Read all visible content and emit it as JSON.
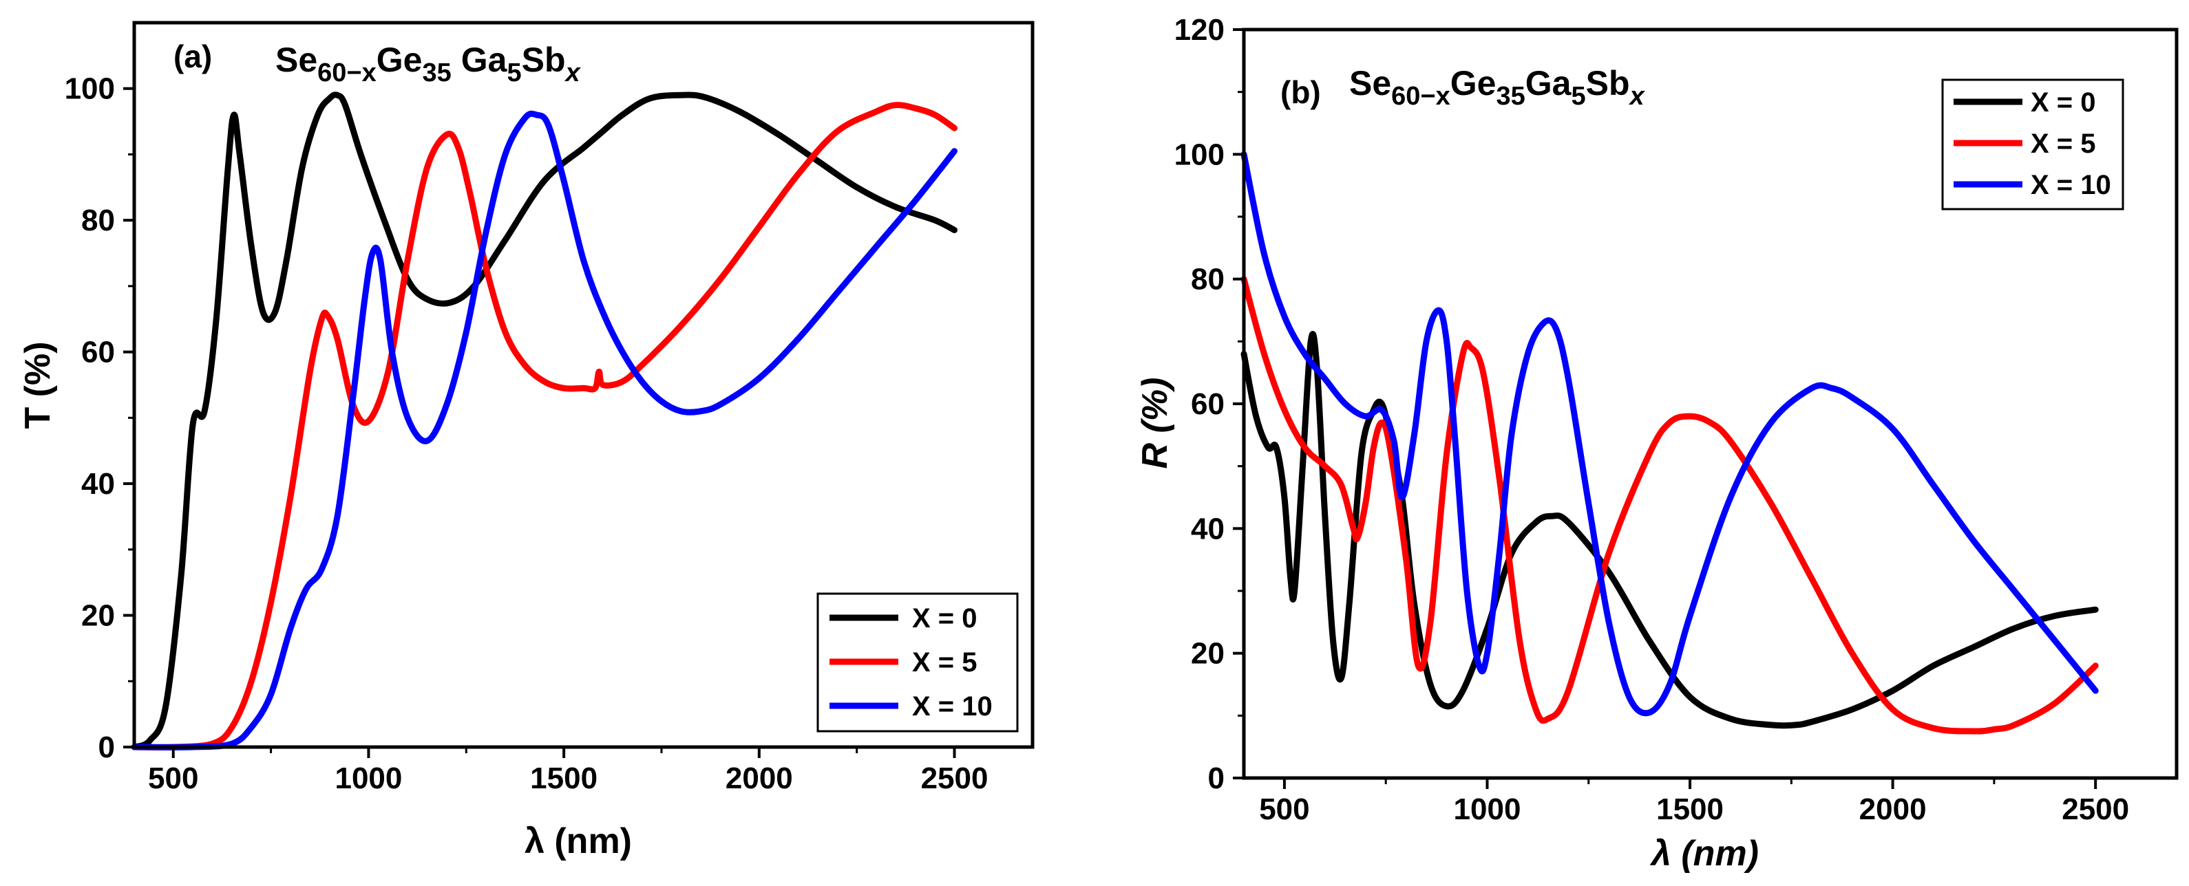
{
  "chart_data": [
    {
      "type": "line",
      "panel_label": "(a)",
      "formula": {
        "se": "Se",
        "se_sub": "60−x",
        "ge": "Ge",
        "ge_sub": "35",
        "ga": "Ga",
        "ga_sub": "5",
        "sb": "Sb",
        "sb_sub": "x"
      },
      "xlabel": "λ (nm)",
      "ylabel": "T (%)",
      "xlim": [
        400,
        2700
      ],
      "ylim": [
        0,
        110
      ],
      "x_ticks": [
        500,
        1000,
        1500,
        2000,
        2500
      ],
      "y_ticks": [
        0,
        20,
        40,
        60,
        80,
        100
      ],
      "legend": "bottom-right",
      "series": [
        {
          "name": "X = 0",
          "color": "#000000",
          "x": [
            400,
            440,
            480,
            520,
            550,
            580,
            610,
            640,
            655,
            670,
            700,
            730,
            760,
            790,
            830,
            870,
            900,
            920,
            940,
            980,
            1040,
            1100,
            1150,
            1210,
            1270,
            1350,
            1450,
            1550,
            1590,
            1650,
            1720,
            1800,
            1860,
            1950,
            2050,
            2150,
            2250,
            2350,
            2450,
            2500
          ],
          "y": [
            0,
            1,
            6,
            26,
            49,
            51,
            65,
            88,
            96,
            90,
            76,
            66,
            66,
            74,
            88,
            96,
            98.5,
            99,
            97.5,
            90,
            80,
            71,
            68,
            67.5,
            70,
            77,
            86,
            91,
            93,
            96,
            98.5,
            99,
            98.7,
            96.5,
            93,
            89,
            85,
            82,
            80,
            78.5
          ]
        },
        {
          "name": "X = 5",
          "color": "#ff0000",
          "x": [
            400,
            500,
            600,
            650,
            700,
            750,
            800,
            850,
            880,
            895,
            920,
            960,
            1000,
            1050,
            1100,
            1150,
            1200,
            1230,
            1260,
            1300,
            1350,
            1400,
            1450,
            1500,
            1550,
            1580,
            1590,
            1600,
            1650,
            1700,
            1800,
            1900,
            2000,
            2100,
            2200,
            2300,
            2350,
            2400,
            2450,
            2500
          ],
          "y": [
            0,
            0,
            0.5,
            3,
            10,
            22,
            38,
            57,
            65,
            65.5,
            62,
            52,
            49.5,
            57,
            74,
            88,
            93,
            91,
            84,
            73,
            63,
            58,
            55.5,
            54.5,
            54.5,
            54.5,
            57,
            55,
            55.5,
            58,
            64,
            71,
            79,
            87,
            93.5,
            96.5,
            97.5,
            97,
            96,
            94
          ]
        },
        {
          "name": "X = 10",
          "color": "#0000ff",
          "x": [
            400,
            550,
            650,
            700,
            750,
            800,
            840,
            880,
            920,
            960,
            990,
            1010,
            1030,
            1060,
            1100,
            1150,
            1200,
            1250,
            1300,
            1350,
            1400,
            1430,
            1460,
            1500,
            1550,
            1600,
            1650,
            1700,
            1750,
            1800,
            1850,
            1900,
            2000,
            2100,
            2200,
            2300,
            2400,
            2500
          ],
          "y": [
            0,
            0,
            0.5,
            3,
            8,
            18,
            24,
            27,
            35,
            53,
            68,
            75,
            74,
            60,
            50,
            46.5,
            52,
            63,
            78,
            90,
            95.5,
            96,
            94.5,
            86,
            74,
            66,
            60,
            55.5,
            52.5,
            51,
            51,
            52,
            56,
            62,
            69,
            76,
            83,
            90.5
          ]
        }
      ]
    },
    {
      "type": "line",
      "panel_label": "(b)",
      "formula": {
        "se": "Se",
        "se_sub": "60−x",
        "ge": "Ge",
        "ge_sub": "35",
        "ga": "Ga",
        "ga_sub": "5",
        "sb": "Sb",
        "sb_sub": "x"
      },
      "xlabel": "λ (nm)",
      "ylabel": "R (%)",
      "xlim": [
        400,
        2700
      ],
      "ylim": [
        0,
        120
      ],
      "x_ticks": [
        500,
        1000,
        1500,
        2000,
        2500
      ],
      "y_ticks": [
        0,
        20,
        40,
        60,
        80,
        100,
        120
      ],
      "legend": "top-right",
      "series": [
        {
          "name": "X = 0",
          "color": "#000000",
          "x": [
            400,
            430,
            460,
            480,
            500,
            515,
            525,
            545,
            565,
            580,
            600,
            620,
            640,
            660,
            690,
            720,
            740,
            760,
            790,
            820,
            860,
            900,
            940,
            1000,
            1060,
            1120,
            1160,
            1200,
            1300,
            1400,
            1500,
            1600,
            1700,
            1760,
            1800,
            1900,
            2000,
            2100,
            2200,
            2300,
            2400,
            2500
          ],
          "y": [
            68,
            58,
            53,
            53,
            45,
            32,
            30,
            50,
            70,
            66,
            42,
            22,
            16,
            28,
            52,
            59,
            60,
            55,
            45,
            28,
            15,
            11.5,
            14,
            24,
            36,
            41,
            42,
            41,
            33,
            22,
            13,
            9.5,
            8.5,
            8.5,
            9,
            11,
            14,
            18,
            21,
            24,
            26,
            27
          ]
        },
        {
          "name": "X = 5",
          "color": "#ff0000",
          "x": [
            400,
            450,
            500,
            550,
            600,
            640,
            670,
            680,
            700,
            720,
            740,
            760,
            800,
            830,
            860,
            900,
            940,
            960,
            990,
            1030,
            1080,
            1120,
            1150,
            1200,
            1300,
            1400,
            1450,
            1500,
            1550,
            1600,
            1700,
            1800,
            1900,
            2000,
            2100,
            2200,
            2250,
            2300,
            2400,
            2500
          ],
          "y": [
            80,
            68,
            59,
            53,
            50,
            47,
            40,
            38.5,
            44,
            53,
            57,
            53,
            35,
            18,
            25,
            52,
            68,
            69,
            65,
            48,
            22,
            11,
            9.5,
            14,
            36,
            52,
            57,
            58,
            57,
            54,
            44,
            32,
            20,
            11,
            8,
            7.5,
            7.8,
            8.5,
            12,
            18
          ]
        },
        {
          "name": "X = 10",
          "color": "#0000ff",
          "x": [
            400,
            450,
            500,
            550,
            600,
            650,
            700,
            740,
            770,
            790,
            820,
            850,
            880,
            900,
            920,
            950,
            980,
            1000,
            1030,
            1060,
            1100,
            1140,
            1170,
            1200,
            1250,
            1300,
            1350,
            1400,
            1450,
            1500,
            1600,
            1700,
            1800,
            1850,
            1900,
            2000,
            2100,
            2200,
            2300,
            2400,
            2500
          ],
          "y": [
            100,
            84,
            74,
            68,
            64,
            60,
            58,
            59,
            54,
            45,
            55,
            70,
            75,
            70,
            55,
            30,
            18,
            20,
            36,
            55,
            68,
            73,
            72,
            64,
            44,
            25,
            13,
            10.5,
            15,
            26,
            45,
            57,
            62.5,
            62.5,
            61,
            56,
            47,
            38,
            30,
            22,
            14
          ]
        }
      ]
    }
  ]
}
